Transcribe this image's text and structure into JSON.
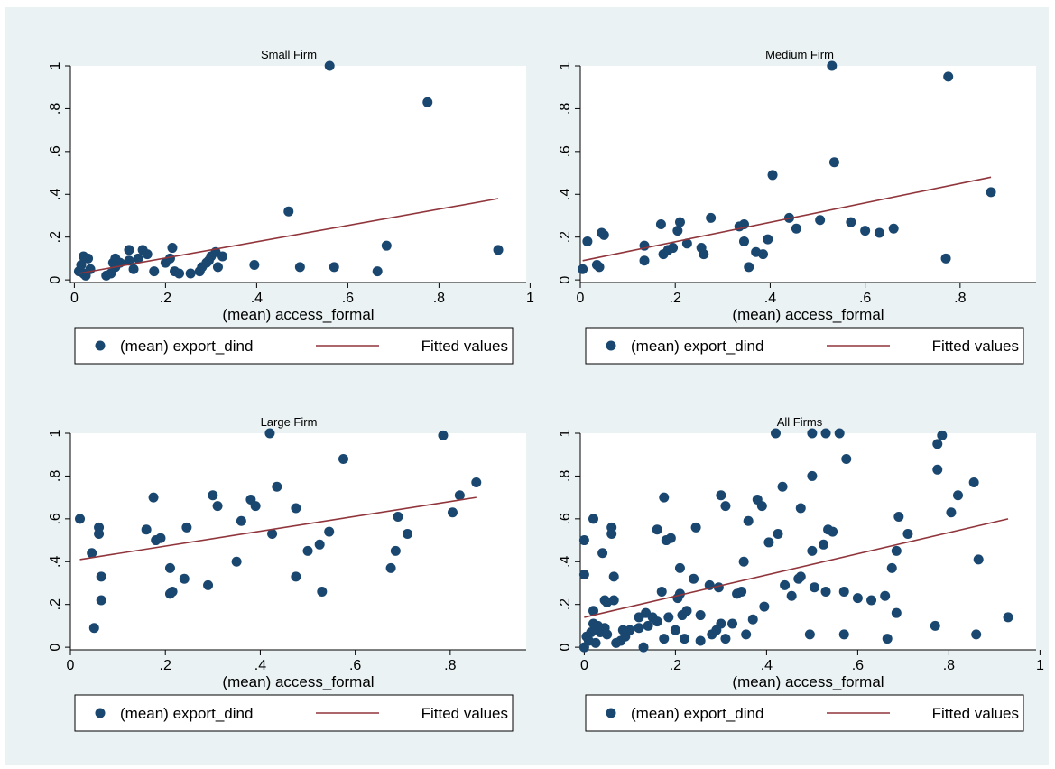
{
  "chart_data": [
    {
      "type": "scatter",
      "title": "Small Firm",
      "xlabel": "(mean) access_formal",
      "ylabel": "",
      "xlim": [
        0,
        1
      ],
      "ylim": [
        0,
        1
      ],
      "xticks": [
        "0",
        ".2",
        ".4",
        ".6",
        ".8",
        "1"
      ],
      "yticks": [
        "0",
        ".2",
        ".4",
        ".6",
        ".8",
        "1"
      ],
      "grid": false,
      "legend_position": "bottom",
      "series": [
        {
          "name": "(mean) export_dind",
          "points": [
            [
              0.01,
              0.04
            ],
            [
              0.015,
              0.07
            ],
            [
              0.02,
              0.03
            ],
            [
              0.02,
              0.11
            ],
            [
              0.025,
              0.02
            ],
            [
              0.03,
              0.1
            ],
            [
              0.035,
              0.05
            ],
            [
              0.07,
              0.02
            ],
            [
              0.08,
              0.03
            ],
            [
              0.085,
              0.08
            ],
            [
              0.09,
              0.06
            ],
            [
              0.09,
              0.1
            ],
            [
              0.1,
              0.08
            ],
            [
              0.12,
              0.14
            ],
            [
              0.12,
              0.09
            ],
            [
              0.13,
              0.05
            ],
            [
              0.14,
              0.1
            ],
            [
              0.15,
              0.14
            ],
            [
              0.16,
              0.12
            ],
            [
              0.175,
              0.04
            ],
            [
              0.2,
              0.08
            ],
            [
              0.21,
              0.1
            ],
            [
              0.215,
              0.15
            ],
            [
              0.22,
              0.04
            ],
            [
              0.23,
              0.03
            ],
            [
              0.255,
              0.03
            ],
            [
              0.275,
              0.04
            ],
            [
              0.28,
              0.06
            ],
            [
              0.29,
              0.08
            ],
            [
              0.295,
              0.09
            ],
            [
              0.3,
              0.11
            ],
            [
              0.31,
              0.13
            ],
            [
              0.315,
              0.06
            ],
            [
              0.325,
              0.11
            ],
            [
              0.395,
              0.07
            ],
            [
              0.47,
              0.32
            ],
            [
              0.495,
              0.06
            ],
            [
              0.56,
              1.0
            ],
            [
              0.57,
              0.06
            ],
            [
              0.665,
              0.04
            ],
            [
              0.685,
              0.16
            ],
            [
              0.775,
              0.83
            ],
            [
              0.93,
              0.14
            ]
          ]
        },
        {
          "name": "Fitted values",
          "line": [
            [
              0.01,
              0.03
            ],
            [
              0.93,
              0.38
            ]
          ]
        }
      ]
    },
    {
      "type": "scatter",
      "title": "Medium Firm",
      "xlabel": "(mean) access_formal",
      "ylabel": "",
      "xlim": [
        0,
        0.88
      ],
      "ylim": [
        0,
        1
      ],
      "xticks": [
        "0",
        ".2",
        ".4",
        ".6",
        ".8"
      ],
      "yticks": [
        "0",
        ".2",
        ".4",
        ".6",
        ".8",
        "1"
      ],
      "grid": false,
      "legend_position": "bottom",
      "series": [
        {
          "name": "(mean) export_dind",
          "points": [
            [
              0.005,
              0.05
            ],
            [
              0.015,
              0.18
            ],
            [
              0.035,
              0.07
            ],
            [
              0.04,
              0.06
            ],
            [
              0.045,
              0.22
            ],
            [
              0.05,
              0.21
            ],
            [
              0.135,
              0.16
            ],
            [
              0.135,
              0.09
            ],
            [
              0.17,
              0.26
            ],
            [
              0.175,
              0.12
            ],
            [
              0.185,
              0.14
            ],
            [
              0.195,
              0.15
            ],
            [
              0.205,
              0.23
            ],
            [
              0.21,
              0.27
            ],
            [
              0.225,
              0.17
            ],
            [
              0.255,
              0.15
            ],
            [
              0.26,
              0.12
            ],
            [
              0.275,
              0.29
            ],
            [
              0.335,
              0.25
            ],
            [
              0.345,
              0.26
            ],
            [
              0.345,
              0.18
            ],
            [
              0.355,
              0.06
            ],
            [
              0.37,
              0.13
            ],
            [
              0.385,
              0.12
            ],
            [
              0.395,
              0.19
            ],
            [
              0.405,
              0.49
            ],
            [
              0.44,
              0.29
            ],
            [
              0.455,
              0.24
            ],
            [
              0.505,
              0.28
            ],
            [
              0.53,
              1.0
            ],
            [
              0.535,
              0.55
            ],
            [
              0.57,
              0.27
            ],
            [
              0.6,
              0.23
            ],
            [
              0.63,
              0.22
            ],
            [
              0.66,
              0.24
            ],
            [
              0.77,
              0.1
            ],
            [
              0.775,
              0.95
            ],
            [
              0.865,
              0.41
            ]
          ]
        },
        {
          "name": "Fitted values",
          "line": [
            [
              0.005,
              0.09
            ],
            [
              0.865,
              0.48
            ]
          ]
        }
      ]
    },
    {
      "type": "scatter",
      "title": "Large Firm",
      "xlabel": "(mean) access_formal",
      "ylabel": "",
      "xlim": [
        0,
        0.88
      ],
      "ylim": [
        0,
        1
      ],
      "xticks": [
        "0",
        ".2",
        ".4",
        ".6",
        ".8"
      ],
      "yticks": [
        "0",
        ".2",
        ".4",
        ".6",
        ".8",
        "1"
      ],
      "grid": false,
      "legend_position": "bottom",
      "series": [
        {
          "name": "(mean) export_dind",
          "points": [
            [
              0.02,
              0.6
            ],
            [
              0.045,
              0.44
            ],
            [
              0.05,
              0.09
            ],
            [
              0.06,
              0.56
            ],
            [
              0.06,
              0.53
            ],
            [
              0.065,
              0.33
            ],
            [
              0.065,
              0.22
            ],
            [
              0.16,
              0.55
            ],
            [
              0.175,
              0.7
            ],
            [
              0.18,
              0.5
            ],
            [
              0.19,
              0.51
            ],
            [
              0.21,
              0.37
            ],
            [
              0.21,
              0.25
            ],
            [
              0.215,
              0.26
            ],
            [
              0.24,
              0.32
            ],
            [
              0.245,
              0.56
            ],
            [
              0.29,
              0.29
            ],
            [
              0.3,
              0.71
            ],
            [
              0.31,
              0.66
            ],
            [
              0.35,
              0.4
            ],
            [
              0.36,
              0.59
            ],
            [
              0.38,
              0.69
            ],
            [
              0.39,
              0.66
            ],
            [
              0.42,
              1.0
            ],
            [
              0.425,
              0.53
            ],
            [
              0.435,
              0.75
            ],
            [
              0.475,
              0.65
            ],
            [
              0.475,
              0.33
            ],
            [
              0.5,
              0.45
            ],
            [
              0.525,
              0.48
            ],
            [
              0.53,
              0.26
            ],
            [
              0.545,
              0.54
            ],
            [
              0.575,
              0.88
            ],
            [
              0.675,
              0.37
            ],
            [
              0.685,
              0.45
            ],
            [
              0.69,
              0.61
            ],
            [
              0.71,
              0.53
            ],
            [
              0.785,
              0.99
            ],
            [
              0.805,
              0.63
            ],
            [
              0.82,
              0.71
            ],
            [
              0.855,
              0.77
            ]
          ]
        },
        {
          "name": "Fitted values",
          "line": [
            [
              0.02,
              0.41
            ],
            [
              0.855,
              0.7
            ]
          ]
        }
      ]
    },
    {
      "type": "scatter",
      "title": "All Firms",
      "xlabel": "(mean) access_formal",
      "ylabel": "",
      "xlim": [
        0,
        1
      ],
      "ylim": [
        0,
        1
      ],
      "xticks": [
        "0",
        ".2",
        ".4",
        ".6",
        ".8",
        "1"
      ],
      "yticks": [
        "0",
        ".2",
        ".4",
        ".6",
        ".8",
        "1"
      ],
      "grid": false,
      "legend_position": "bottom",
      "series": [
        {
          "name": "(mean) export_dind",
          "points": [
            [
              0.0,
              0.5
            ],
            [
              0.0,
              0.34
            ],
            [
              0.0,
              0.0
            ],
            [
              0.005,
              0.05
            ],
            [
              0.01,
              0.03
            ],
            [
              0.015,
              0.07
            ],
            [
              0.02,
              0.11
            ],
            [
              0.02,
              0.17
            ],
            [
              0.02,
              0.6
            ],
            [
              0.025,
              0.02
            ],
            [
              0.03,
              0.1
            ],
            [
              0.035,
              0.07
            ],
            [
              0.04,
              0.44
            ],
            [
              0.045,
              0.22
            ],
            [
              0.045,
              0.09
            ],
            [
              0.05,
              0.21
            ],
            [
              0.05,
              0.06
            ],
            [
              0.06,
              0.56
            ],
            [
              0.06,
              0.53
            ],
            [
              0.065,
              0.33
            ],
            [
              0.065,
              0.22
            ],
            [
              0.07,
              0.02
            ],
            [
              0.08,
              0.03
            ],
            [
              0.085,
              0.08
            ],
            [
              0.09,
              0.05
            ],
            [
              0.1,
              0.08
            ],
            [
              0.12,
              0.14
            ],
            [
              0.12,
              0.09
            ],
            [
              0.13,
              0.0
            ],
            [
              0.135,
              0.16
            ],
            [
              0.14,
              0.1
            ],
            [
              0.15,
              0.14
            ],
            [
              0.16,
              0.55
            ],
            [
              0.16,
              0.12
            ],
            [
              0.17,
              0.26
            ],
            [
              0.175,
              0.7
            ],
            [
              0.175,
              0.04
            ],
            [
              0.18,
              0.5
            ],
            [
              0.185,
              0.14
            ],
            [
              0.19,
              0.51
            ],
            [
              0.2,
              0.08
            ],
            [
              0.205,
              0.23
            ],
            [
              0.21,
              0.37
            ],
            [
              0.21,
              0.25
            ],
            [
              0.215,
              0.15
            ],
            [
              0.22,
              0.04
            ],
            [
              0.225,
              0.17
            ],
            [
              0.24,
              0.32
            ],
            [
              0.245,
              0.56
            ],
            [
              0.255,
              0.03
            ],
            [
              0.255,
              0.15
            ],
            [
              0.275,
              0.29
            ],
            [
              0.28,
              0.06
            ],
            [
              0.29,
              0.08
            ],
            [
              0.295,
              0.28
            ],
            [
              0.3,
              0.71
            ],
            [
              0.3,
              0.11
            ],
            [
              0.31,
              0.66
            ],
            [
              0.31,
              0.04
            ],
            [
              0.325,
              0.11
            ],
            [
              0.335,
              0.25
            ],
            [
              0.345,
              0.26
            ],
            [
              0.35,
              0.4
            ],
            [
              0.355,
              0.06
            ],
            [
              0.36,
              0.59
            ],
            [
              0.37,
              0.13
            ],
            [
              0.38,
              0.69
            ],
            [
              0.39,
              0.66
            ],
            [
              0.395,
              0.19
            ],
            [
              0.405,
              0.49
            ],
            [
              0.42,
              1.0
            ],
            [
              0.425,
              0.53
            ],
            [
              0.435,
              0.75
            ],
            [
              0.44,
              0.29
            ],
            [
              0.455,
              0.24
            ],
            [
              0.47,
              0.32
            ],
            [
              0.475,
              0.65
            ],
            [
              0.475,
              0.33
            ],
            [
              0.495,
              0.06
            ],
            [
              0.5,
              1.0
            ],
            [
              0.5,
              0.8
            ],
            [
              0.5,
              0.45
            ],
            [
              0.505,
              0.28
            ],
            [
              0.525,
              0.48
            ],
            [
              0.53,
              1.0
            ],
            [
              0.53,
              0.26
            ],
            [
              0.535,
              0.55
            ],
            [
              0.545,
              0.54
            ],
            [
              0.56,
              1.0
            ],
            [
              0.57,
              0.26
            ],
            [
              0.57,
              0.06
            ],
            [
              0.575,
              0.88
            ],
            [
              0.6,
              0.23
            ],
            [
              0.63,
              0.22
            ],
            [
              0.66,
              0.24
            ],
            [
              0.665,
              0.04
            ],
            [
              0.675,
              0.37
            ],
            [
              0.685,
              0.45
            ],
            [
              0.685,
              0.16
            ],
            [
              0.69,
              0.61
            ],
            [
              0.71,
              0.53
            ],
            [
              0.77,
              0.1
            ],
            [
              0.775,
              0.83
            ],
            [
              0.775,
              0.95
            ],
            [
              0.785,
              0.99
            ],
            [
              0.805,
              0.63
            ],
            [
              0.82,
              0.71
            ],
            [
              0.855,
              0.77
            ],
            [
              0.86,
              0.06
            ],
            [
              0.865,
              0.41
            ],
            [
              0.93,
              0.14
            ]
          ]
        },
        {
          "name": "Fitted values",
          "line": [
            [
              0.0,
              0.14
            ],
            [
              0.93,
              0.6
            ]
          ]
        }
      ]
    }
  ],
  "style": {
    "marker_color": "#1a476f",
    "fit_color": "#90353b",
    "figure_background": "#eaf2f3",
    "plot_background": "#ffffff"
  }
}
